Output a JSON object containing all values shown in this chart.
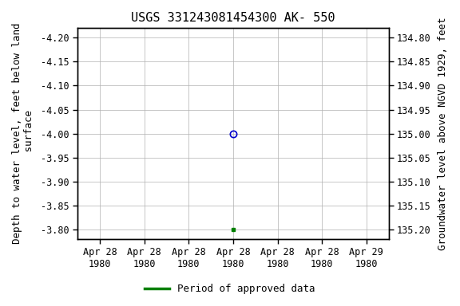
{
  "title": "USGS 331243081454300 AK- 550",
  "ylabel_left": "Depth to water level, feet below land\n surface",
  "ylabel_right": "Groundwater level above NGVD 1929, feet",
  "ylim_left": [
    -4.22,
    -3.78
  ],
  "ylim_left_inverted": true,
  "ylim_right": [
    134.78,
    135.22
  ],
  "ylim_right_inverted": false,
  "yticks_left": [
    -4.2,
    -4.15,
    -4.1,
    -4.05,
    -4.0,
    -3.95,
    -3.9,
    -3.85,
    -3.8
  ],
  "yticks_right": [
    134.8,
    134.85,
    134.9,
    134.95,
    135.0,
    135.05,
    135.1,
    135.15,
    135.2
  ],
  "data_point_x": 3.5,
  "data_point_y": -4.0,
  "data_point_color": "#0000cc",
  "green_square_x": 3.5,
  "green_square_y": -3.8,
  "green_color": "#008000",
  "legend_label": "Period of approved data",
  "background_color": "#ffffff",
  "grid_color": "#b0b0b0",
  "xlim": [
    0,
    7
  ],
  "xtick_positions": [
    0.5,
    1.5,
    2.5,
    3.5,
    4.5,
    5.5,
    6.5
  ],
  "xtick_labels": [
    "Apr 28\n1980",
    "Apr 28\n1980",
    "Apr 28\n1980",
    "Apr 28\n1980",
    "Apr 28\n1980",
    "Apr 28\n1980",
    "Apr 29\n1980"
  ],
  "title_fontsize": 11,
  "axis_label_fontsize": 9,
  "tick_fontsize": 8.5
}
